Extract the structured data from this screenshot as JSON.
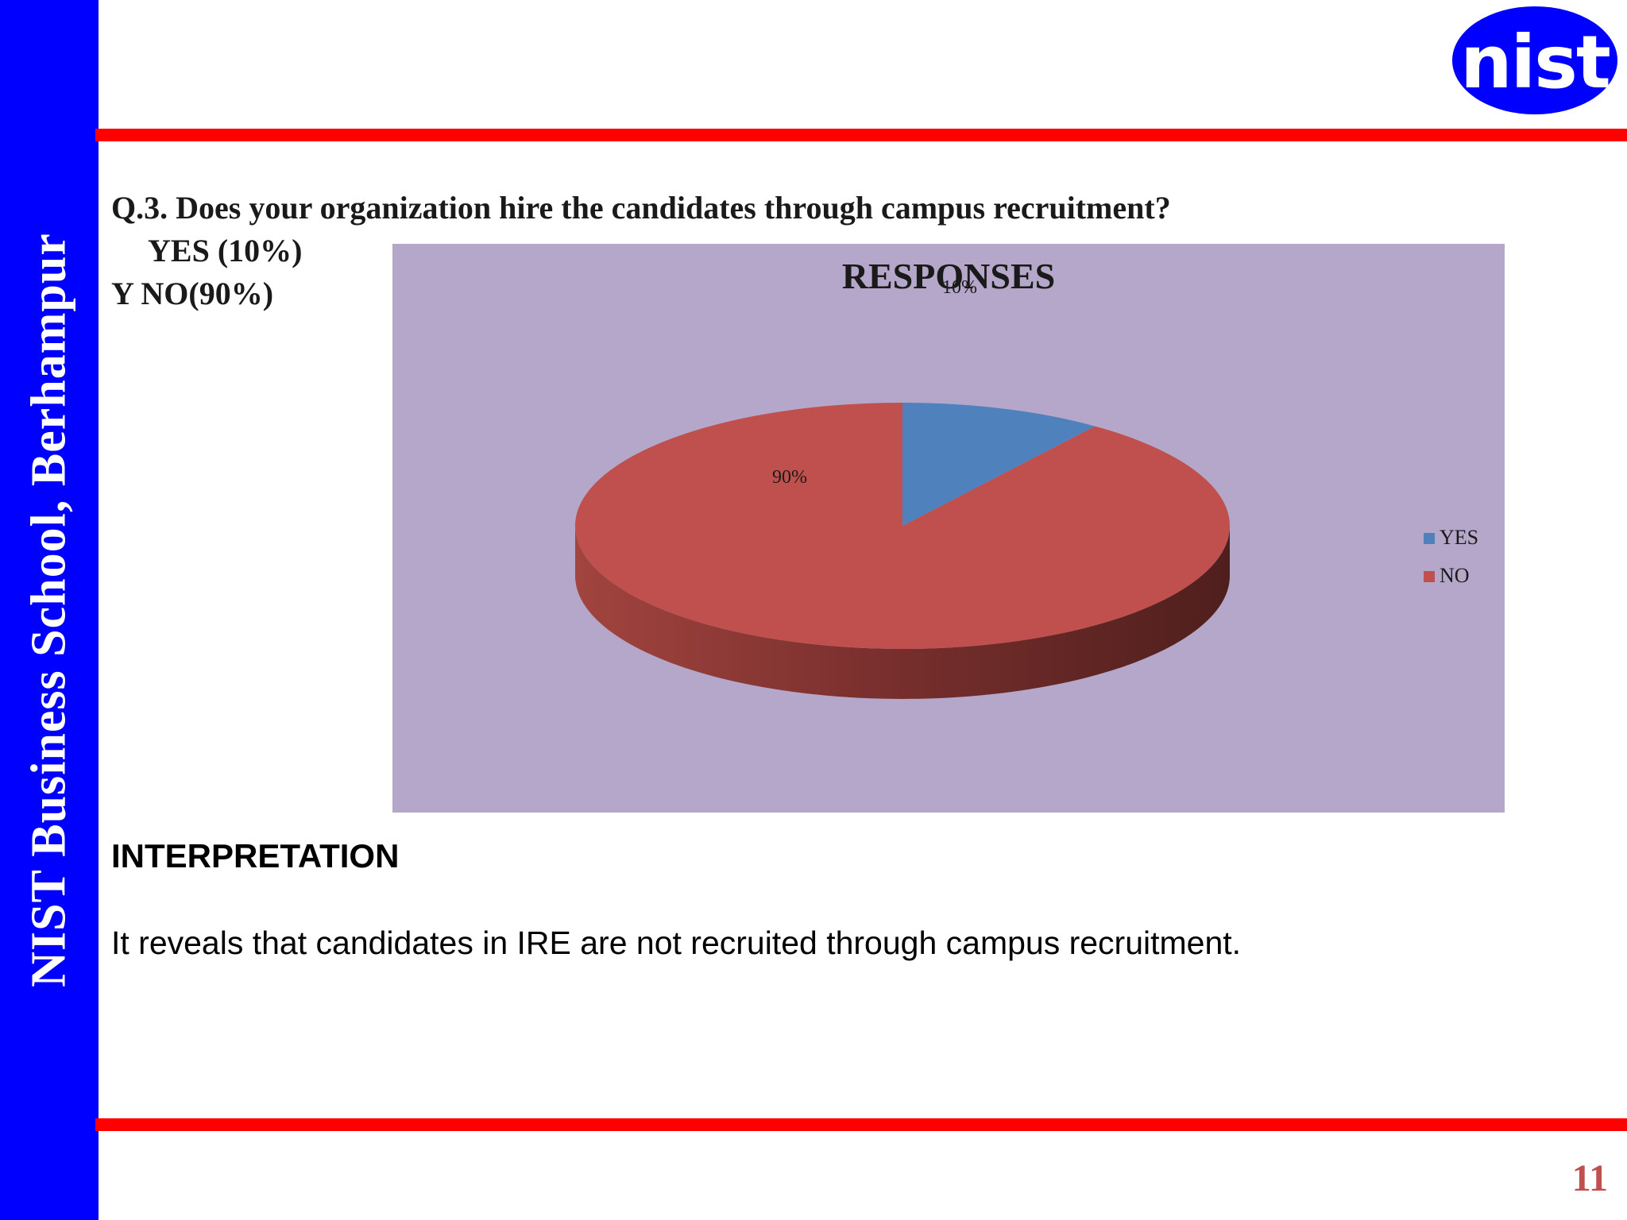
{
  "sidebar": {
    "text": "NIST Business School, Berhampur"
  },
  "logo": {
    "text": "nist"
  },
  "question": {
    "text": "Q.3. Does your organization hire the candidates through campus recruitment?",
    "option_yes": "YES (10%)",
    "option_no": "Y NO(90%)"
  },
  "chart_data": {
    "type": "pie",
    "title": "RESPONSES",
    "categories": [
      "YES",
      "NO"
    ],
    "values": [
      10,
      90
    ],
    "data_labels": [
      "10%",
      "90%"
    ],
    "colors": [
      "#4f81bd",
      "#c0504d"
    ],
    "legend_position": "right",
    "style": "3d"
  },
  "interpretation": {
    "heading": "INTERPRETATION",
    "text": "It reveals that candidates in IRE are not recruited through campus recruitment."
  },
  "page_number": "11"
}
